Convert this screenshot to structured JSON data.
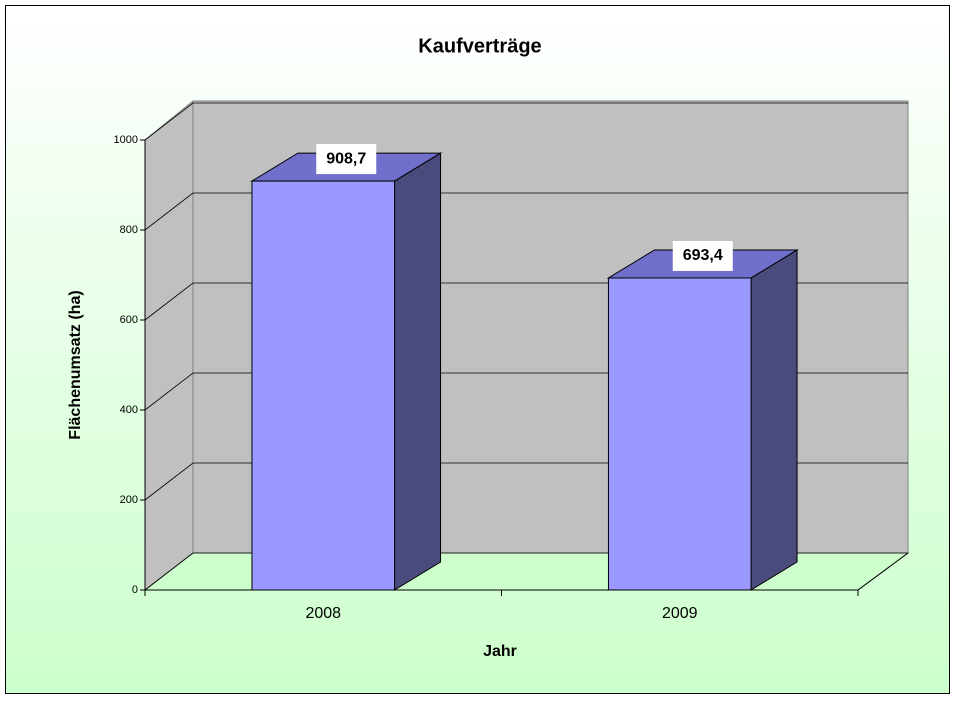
{
  "chart_data": {
    "type": "bar",
    "title": "Kaufverträge",
    "x_label": "Jahr",
    "y_label": "Flächenumsatz (ha)",
    "categories": [
      "2008",
      "2009"
    ],
    "values": [
      908.7,
      693.4
    ],
    "value_labels": [
      "908,7",
      "693,4"
    ],
    "color": "#9999ff",
    "ylim": [
      0,
      1000
    ],
    "yticks": [
      0,
      200,
      400,
      600,
      800,
      1000
    ],
    "grid": true
  }
}
